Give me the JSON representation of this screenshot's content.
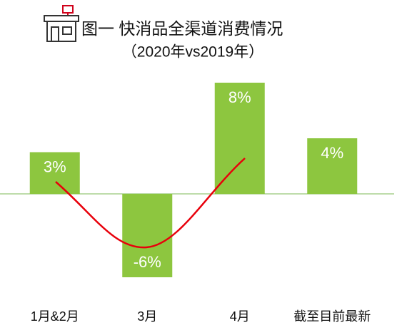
{
  "chart_data": {
    "type": "bar",
    "title": "图一  快消品全渠道消费情况",
    "subtitle": "（2020年vs2019年）",
    "categories": [
      "1月&2月",
      "3月",
      "4月",
      "截至目前最新"
    ],
    "values": [
      3,
      -6,
      8,
      4
    ],
    "value_labels": [
      "3%",
      "-6%",
      "8%",
      "4%"
    ],
    "color": "#8dc63f"
  }
}
